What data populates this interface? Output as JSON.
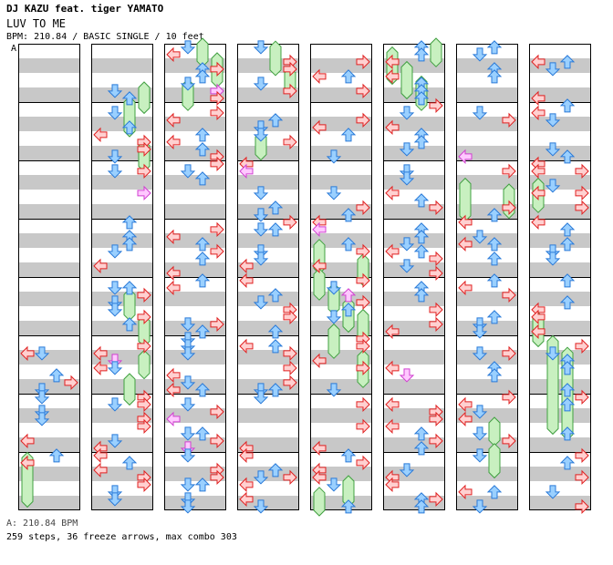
{
  "header": {
    "artist": "DJ KAZU feat. tiger YAMATO",
    "song_title": "LUV TO ME",
    "chart_info": "BPM: 210.84 / BASIC SINGLE / 10 feet"
  },
  "chart": {
    "speed_marker": "A",
    "num_columns": 8,
    "measures_per_column": 8,
    "colors": {
      "stripe": "#c8c8c8",
      "border": "#000000",
      "left_fill": "#ffd0d0",
      "left_stroke": "#e02020",
      "down_fill": "#9ad0ff",
      "down_stroke": "#2a7ad8",
      "up_fill": "#9ad0ff",
      "up_stroke": "#2a7ad8",
      "right_fill": "#ffd0d0",
      "right_stroke": "#e02020",
      "pink_fill": "#ffc8ff",
      "pink_stroke": "#d040d0",
      "freeze_fill": "#c8f0c0",
      "freeze_stroke": "#40a040"
    },
    "freeze_arrows": [
      {
        "col": 0,
        "lane": 0,
        "m1": 7.1,
        "m2": 7.85
      },
      {
        "col": 1,
        "lane": 3,
        "m1": 0.75,
        "m2": 1.1
      },
      {
        "col": 1,
        "lane": 2,
        "m1": 1.0,
        "m2": 1.5
      },
      {
        "col": 1,
        "lane": 3,
        "m1": 1.75,
        "m2": 2.1
      },
      {
        "col": 1,
        "lane": 2,
        "m1": 4.3,
        "m2": 4.65
      },
      {
        "col": 1,
        "lane": 3,
        "m1": 4.75,
        "m2": 5.1
      },
      {
        "col": 1,
        "lane": 3,
        "m1": 5.35,
        "m2": 5.65
      },
      {
        "col": 1,
        "lane": 2,
        "m1": 5.75,
        "m2": 6.1
      },
      {
        "col": 2,
        "lane": 2,
        "m1": 0,
        "m2": 0.3
      },
      {
        "col": 2,
        "lane": 3,
        "m1": 0.25,
        "m2": 0.65
      },
      {
        "col": 2,
        "lane": 1,
        "m1": 0.7,
        "m2": 1.05
      },
      {
        "col": 3,
        "lane": 2,
        "m1": 0.05,
        "m2": 0.45
      },
      {
        "col": 3,
        "lane": 3,
        "m1": 0.5,
        "m2": 0.75
      },
      {
        "col": 3,
        "lane": 1,
        "m1": 1.6,
        "m2": 1.9
      },
      {
        "col": 4,
        "lane": 0,
        "m1": 3.45,
        "m2": 3.85
      },
      {
        "col": 4,
        "lane": 0,
        "m1": 3.95,
        "m2": 4.3
      },
      {
        "col": 4,
        "lane": 1,
        "m1": 4.2,
        "m2": 4.55
      },
      {
        "col": 4,
        "lane": 2,
        "m1": 4.45,
        "m2": 4.85
      },
      {
        "col": 4,
        "lane": 3,
        "m1": 4.65,
        "m2": 5.0
      },
      {
        "col": 4,
        "lane": 3,
        "m1": 3.7,
        "m2": 4.05
      },
      {
        "col": 4,
        "lane": 1,
        "m1": 4.9,
        "m2": 5.3
      },
      {
        "col": 4,
        "lane": 3,
        "m1": 5.35,
        "m2": 5.8
      },
      {
        "col": 4,
        "lane": 2,
        "m1": 7.5,
        "m2": 7.85
      },
      {
        "col": 4,
        "lane": 0,
        "m1": 7.7,
        "m2": 8.0
      },
      {
        "col": 5,
        "lane": 0,
        "m1": 0.15,
        "m2": 0.6
      },
      {
        "col": 5,
        "lane": 1,
        "m1": 0.4,
        "m2": 0.85
      },
      {
        "col": 5,
        "lane": 2,
        "m1": 0.65,
        "m2": 1.05
      },
      {
        "col": 5,
        "lane": 3,
        "m1": 0,
        "m2": 0.3
      },
      {
        "col": 6,
        "lane": 0,
        "m1": 2.4,
        "m2": 2.95
      },
      {
        "col": 6,
        "lane": 3,
        "m1": 2.5,
        "m2": 2.9
      },
      {
        "col": 6,
        "lane": 2,
        "m1": 6.5,
        "m2": 6.8
      },
      {
        "col": 6,
        "lane": 2,
        "m1": 6.95,
        "m2": 7.35
      },
      {
        "col": 7,
        "lane": 0,
        "m1": 2.4,
        "m2": 2.8
      },
      {
        "col": 7,
        "lane": 0,
        "m1": 4.7,
        "m2": 5.1
      },
      {
        "col": 7,
        "lane": 1,
        "m1": 5.1,
        "m2": 6.6
      },
      {
        "col": 7,
        "lane": 2,
        "m1": 5.3,
        "m2": 6.7
      }
    ]
  },
  "footer": {
    "speed_line": "A: 210.84 BPM",
    "stats_line": "259 steps, 36 freeze arrows, max combo 303"
  }
}
